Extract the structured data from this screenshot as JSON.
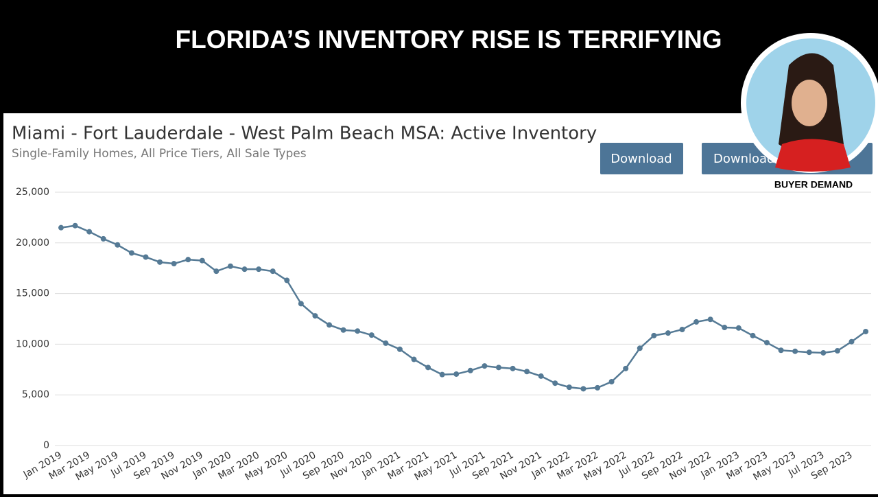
{
  "header": {
    "headline": "FLORIDA’S INVENTORY RISE IS TERRIFYING"
  },
  "buttons": [
    "Download",
    "Download"
  ],
  "badge": {
    "caption": "BUYER DEMAND"
  },
  "chart_data": {
    "type": "line",
    "title": "Miami - Fort Lauderdale - West Palm Beach MSA: Active Inventory",
    "subtitle": "Single-Family Homes, All Price Tiers, All Sale Types",
    "color": "#557a95",
    "grid": true,
    "categories": [
      "Jan 2019",
      null,
      "Mar 2019",
      null,
      "May 2019",
      null,
      "Jul 2019",
      null,
      "Sep 2019",
      null,
      "Nov 2019",
      null,
      "Jan 2020",
      null,
      "Mar 2020",
      null,
      "May 2020",
      null,
      "Jul 2020",
      null,
      "Sep 2020",
      null,
      "Nov 2020",
      null,
      "Jan 2021",
      null,
      "Mar 2021",
      null,
      "May 2021",
      null,
      "Jul 2021",
      null,
      "Sep 2021",
      null,
      "Nov 2021",
      null,
      "Jan 2022",
      null,
      "Mar 2022",
      null,
      "May 2022",
      null,
      "Jul 2022",
      null,
      "Sep 2022",
      null,
      "Nov 2022",
      null,
      "Jan 2023",
      null,
      "Mar 2023",
      null,
      "May 2023",
      null,
      "Jul 2023",
      null,
      "Sep 2023",
      null
    ],
    "values": [
      21500,
      21700,
      21100,
      20400,
      19800,
      19000,
      18600,
      18100,
      17950,
      18350,
      18250,
      17200,
      17700,
      17400,
      17400,
      17200,
      16300,
      14000,
      12800,
      11900,
      11400,
      11300,
      10900,
      10100,
      9500,
      8500,
      7700,
      7000,
      7050,
      7400,
      7850,
      7700,
      7600,
      7300,
      6850,
      6150,
      5750,
      5600,
      5700,
      6300,
      7600,
      9600,
      10850,
      11100,
      11450,
      12200,
      12450,
      11650,
      11600,
      10850,
      10150,
      9400,
      9300,
      9200,
      9150,
      9350,
      10250,
      11250
    ],
    "ylim": [
      0,
      25000
    ],
    "yticks": [
      0,
      {
        "value": 5000,
        "label": "5,000"
      },
      {
        "value": 10000,
        "label": "10,000"
      },
      {
        "value": 15000,
        "label": "15,000"
      },
      {
        "value": 20000,
        "label": "20,000"
      },
      {
        "value": 25000,
        "label": "25,000"
      }
    ]
  }
}
